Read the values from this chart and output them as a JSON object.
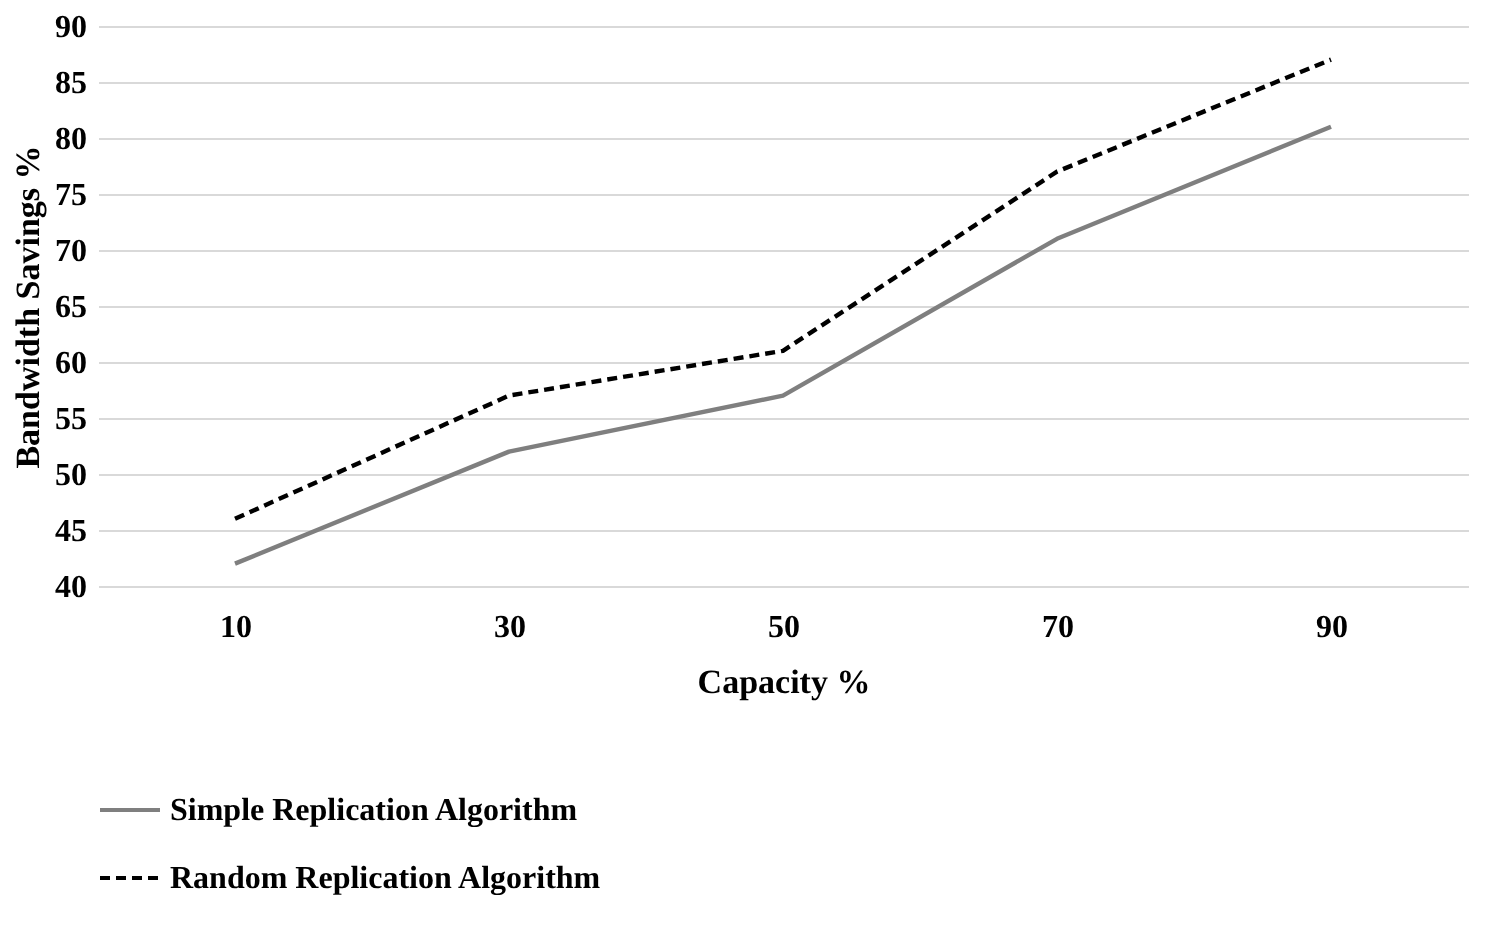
{
  "chart_data": {
    "type": "line",
    "xlabel": "Capacity %",
    "ylabel": "Bandwidth Savings %",
    "categories": [
      "10",
      "30",
      "50",
      "70",
      "90"
    ],
    "series": [
      {
        "name": "Simple Replication Algorithm",
        "color": "#7f7f7f",
        "line_style": "solid",
        "values": [
          42,
          52,
          57,
          71,
          81
        ]
      },
      {
        "name": "Random Replication Algorithm",
        "color": "#000000",
        "line_style": "dashed",
        "values": [
          46,
          57,
          61,
          77,
          87
        ]
      }
    ],
    "ylim": [
      40,
      90
    ],
    "yticks": [
      40,
      45,
      50,
      55,
      60,
      65,
      70,
      75,
      80,
      85,
      90
    ],
    "grid": "y",
    "legend": "bottom",
    "marker": "none"
  }
}
